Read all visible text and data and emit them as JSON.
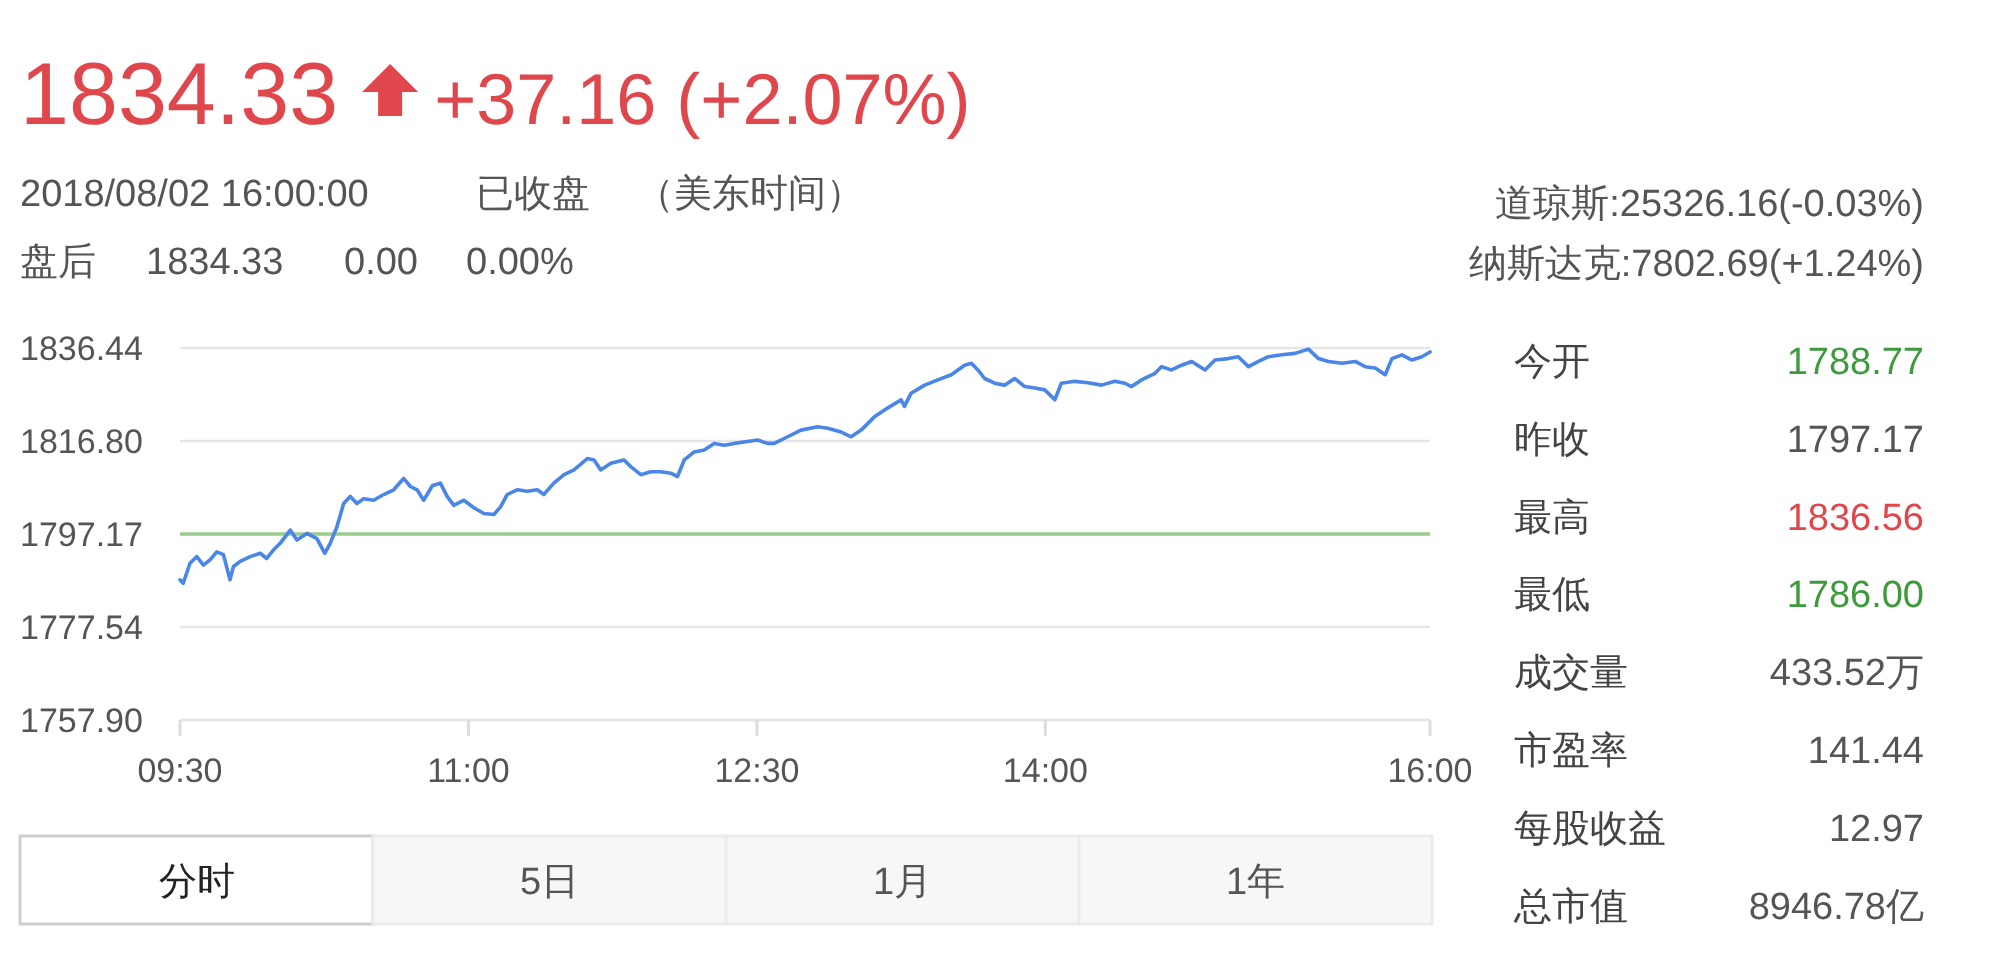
{
  "chart_data": [
    {
      "type": "line",
      "title": "1834.33",
      "annotations": [
        "+37.16 (+2.07%)",
        "2018/08/02 16:00:00",
        "已收盘",
        "（美东时间）",
        "盘后",
        "1834.33",
        "0.00",
        "0.00%",
        "分时",
        "5日",
        "1月",
        "1年"
      ],
      "xlim": [
        9.5,
        16
      ],
      "xticks": [
        {
          "value": 9.5,
          "label": "09:30"
        },
        {
          "value": 11,
          "label": "11:00"
        },
        {
          "value": 12.5,
          "label": "12:30"
        },
        {
          "value": 14,
          "label": "14:00"
        },
        {
          "value": 16,
          "label": "16:00"
        }
      ],
      "ylim": [
        1757.9,
        1836.44
      ],
      "yticks": [
        {
          "value": 1757.9,
          "label": "1757.90"
        },
        1777.54,
        1797.17,
        {
          "value": 1816.8,
          "label": "1816.80"
        },
        1836.44
      ],
      "grid": "y",
      "ref_lines": [
        {
          "axis": "y",
          "value": 1797.17,
          "color": "#9acd8e"
        }
      ],
      "series": [
        {
          "color": "#4a86e8",
          "x": [
            9.5,
            9.517,
            9.552,
            9.587,
            9.622,
            9.656,
            9.691,
            9.726,
            9.76,
            9.778,
            9.813,
            9.865,
            9.917,
            9.951,
            9.986,
            10.021,
            10.073,
            10.108,
            10.16,
            10.212,
            10.253,
            10.281,
            10.316,
            10.351,
            10.385,
            10.42,
            10.455,
            10.507,
            10.559,
            10.611,
            10.663,
            10.698,
            10.733,
            10.767,
            10.813,
            10.854,
            10.889,
            10.924,
            10.976,
            11.028,
            11.08,
            11.132,
            11.167,
            11.201,
            11.253,
            11.306,
            11.358,
            11.392,
            11.444,
            11.497,
            11.549,
            11.618,
            11.653,
            11.688,
            11.74,
            11.809,
            11.844,
            11.896,
            11.948,
            12.0,
            12.052,
            12.087,
            12.122,
            12.174,
            12.226,
            12.278,
            12.33,
            12.382,
            12.451,
            12.503,
            12.556,
            12.59,
            12.66,
            12.729,
            12.816,
            12.868,
            12.938,
            12.99,
            13.042,
            13.111,
            13.181,
            13.25,
            13.267,
            13.302,
            13.372,
            13.441,
            13.511,
            13.58,
            13.615,
            13.649,
            13.684,
            13.736,
            13.788,
            13.84,
            13.893,
            13.945,
            13.997,
            14.049,
            14.083,
            14.153,
            14.222,
            14.292,
            14.361,
            14.413,
            14.448,
            14.5,
            14.57,
            14.604,
            14.656,
            14.708,
            14.761,
            14.83,
            14.882,
            14.951,
            15.003,
            15.056,
            15.108,
            15.16,
            15.229,
            15.299,
            15.368,
            15.42,
            15.472,
            15.542,
            15.611,
            15.663,
            15.715,
            15.767,
            15.802,
            15.854,
            15.906,
            15.958,
            16.0
          ],
          "values": [
            1787.5,
            1786.8,
            1791.0,
            1792.4,
            1790.6,
            1791.7,
            1793.4,
            1792.8,
            1787.5,
            1790.3,
            1791.4,
            1792.4,
            1793.1,
            1792.0,
            1793.8,
            1795.2,
            1798.0,
            1795.9,
            1797.3,
            1796.2,
            1793.1,
            1795.2,
            1798.7,
            1803.6,
            1805.1,
            1803.6,
            1804.6,
            1804.3,
            1805.5,
            1806.5,
            1808.9,
            1807.2,
            1806.5,
            1804.3,
            1807.4,
            1807.9,
            1805.1,
            1803.2,
            1804.3,
            1802.7,
            1801.5,
            1801.3,
            1802.9,
            1805.5,
            1806.5,
            1806.2,
            1806.5,
            1805.5,
            1807.9,
            1809.7,
            1810.7,
            1813.1,
            1812.8,
            1810.7,
            1812.1,
            1812.8,
            1811.4,
            1809.7,
            1810.3,
            1810.3,
            1810.0,
            1809.3,
            1812.8,
            1814.5,
            1814.9,
            1816.3,
            1815.9,
            1816.3,
            1816.7,
            1817.0,
            1816.3,
            1816.3,
            1817.7,
            1819.1,
            1819.8,
            1819.5,
            1818.7,
            1817.7,
            1819.1,
            1821.9,
            1823.8,
            1825.5,
            1824.1,
            1826.9,
            1828.6,
            1829.7,
            1830.8,
            1832.8,
            1833.2,
            1831.8,
            1830.0,
            1829.0,
            1828.6,
            1830.0,
            1828.3,
            1828.0,
            1827.6,
            1825.5,
            1829.0,
            1829.4,
            1829.1,
            1828.6,
            1829.4,
            1829.0,
            1828.3,
            1829.7,
            1831.1,
            1832.5,
            1831.8,
            1832.8,
            1833.6,
            1831.8,
            1833.9,
            1834.2,
            1834.6,
            1832.5,
            1833.6,
            1834.6,
            1835.0,
            1835.3,
            1836.2,
            1834.2,
            1833.6,
            1833.2,
            1833.6,
            1832.5,
            1832.2,
            1830.8,
            1834.2,
            1835.0,
            1833.9,
            1834.6,
            1835.6
          ]
        }
      ]
    },
    {
      "type": "other",
      "annotations": [
        "道琼斯:25326.16(-0.03%)",
        "纳斯达克:7802.69(+1.24%)"
      ],
      "categories": [
        "今开",
        "昨收",
        "最高",
        "最低",
        "成交量",
        "市盈率",
        "每股收益",
        "总市值"
      ],
      "value_labels": [
        "1788.77",
        "1797.17",
        "1836.56",
        "1786.00",
        "433.52万",
        "141.44",
        "12.97",
        "8946.78亿"
      ],
      "colors": [
        "#3d9a3d",
        "#555555",
        "#e0474c",
        "#3d9a3d",
        "#555555",
        "#555555",
        "#555555",
        "#555555"
      ]
    }
  ]
}
